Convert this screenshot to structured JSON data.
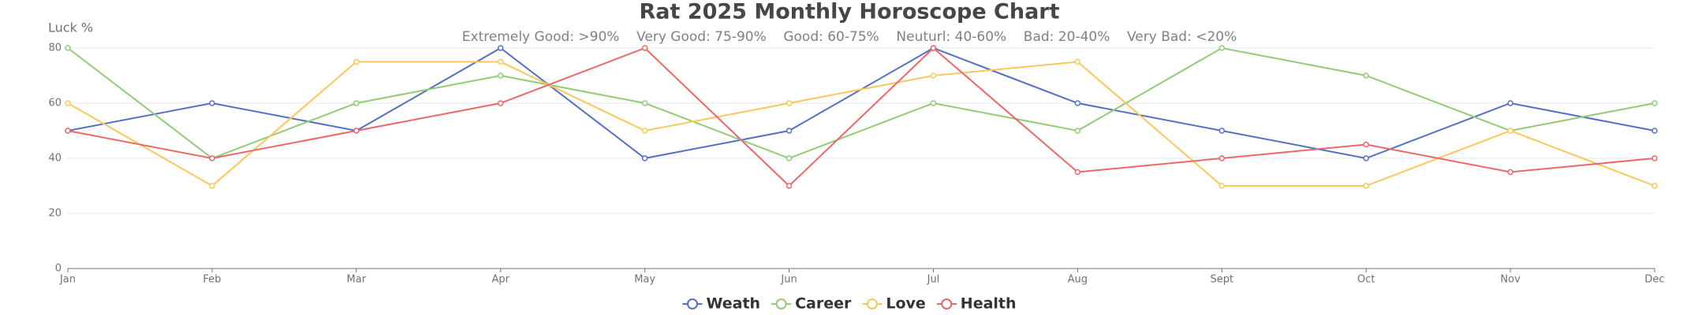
{
  "chart_data": {
    "type": "line",
    "title": "Rat 2025 Monthly Horoscope Chart",
    "subtitle": "Extremely Good: >90%    Very Good: 75-90%    Good: 60-75%    Neuturl: 40-60%    Bad: 20-40%    Very Bad: <20%",
    "y_label": "Luck %",
    "categories": [
      "Jan",
      "Feb",
      "Mar",
      "Apr",
      "May",
      "Jun",
      "Jul",
      "Aug",
      "Sept",
      "Oct",
      "Nov",
      "Dec"
    ],
    "series": [
      {
        "name": "Weath",
        "color": "#5470c6",
        "values": [
          50,
          60,
          50,
          80,
          40,
          50,
          80,
          60,
          50,
          40,
          60,
          50
        ]
      },
      {
        "name": "Career",
        "color": "#91cc75",
        "values": [
          80,
          40,
          60,
          70,
          60,
          40,
          60,
          50,
          80,
          70,
          50,
          60
        ]
      },
      {
        "name": "Love",
        "color": "#fac858",
        "values": [
          60,
          30,
          75,
          75,
          50,
          60,
          70,
          75,
          30,
          30,
          50,
          30
        ]
      },
      {
        "name": "Health",
        "color": "#ee6666",
        "values": [
          50,
          40,
          50,
          60,
          80,
          30,
          80,
          35,
          40,
          45,
          35,
          40
        ]
      }
    ],
    "ylim": [
      0,
      80
    ],
    "yticks": [
      0,
      20,
      40,
      60,
      80
    ],
    "grid": true
  }
}
